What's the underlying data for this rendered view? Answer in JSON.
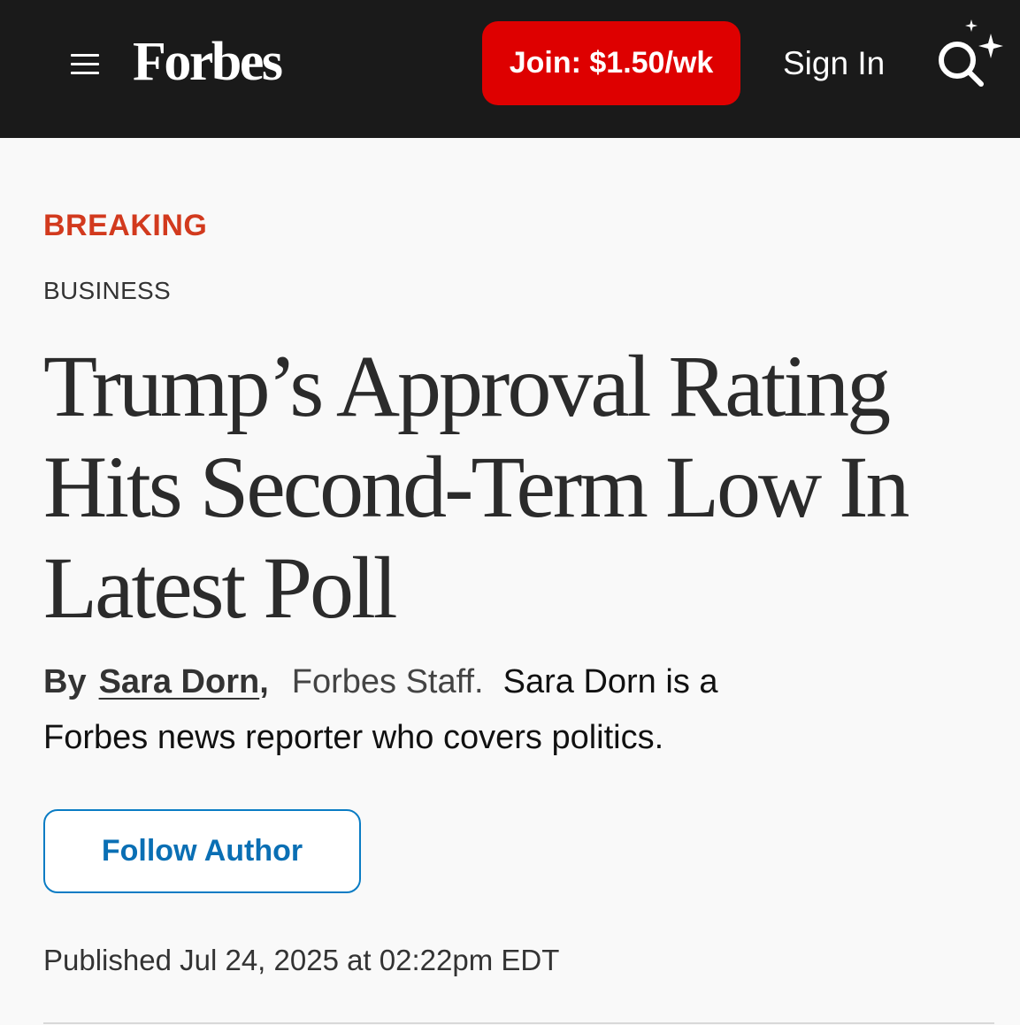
{
  "header": {
    "logo": "Forbes",
    "join_label": "Join: $1.50/wk",
    "signin_label": "Sign In",
    "icons": {
      "menu": "hamburger-menu-icon",
      "search": "search-sparkle-icon"
    },
    "colors": {
      "bar": "#1a1a1a",
      "join_button": "#de0000"
    }
  },
  "article": {
    "breaking_label": "BREAKING",
    "category": "BUSINESS",
    "headline": "Trump’s Approval Rating Hits Second-Term Low In Latest Poll",
    "byline": {
      "by": "By",
      "author": "Sara Dorn",
      "comma": ",",
      "staff": "Forbes Staff.",
      "bio": "Sara Dorn is a Forbes news reporter who covers politics."
    },
    "follow_label": "Follow Author",
    "published": "Published Jul 24, 2025 at 02:22pm EDT",
    "colors": {
      "breaking": "#d23a1e",
      "follow_button": "#0a7cc4"
    }
  }
}
